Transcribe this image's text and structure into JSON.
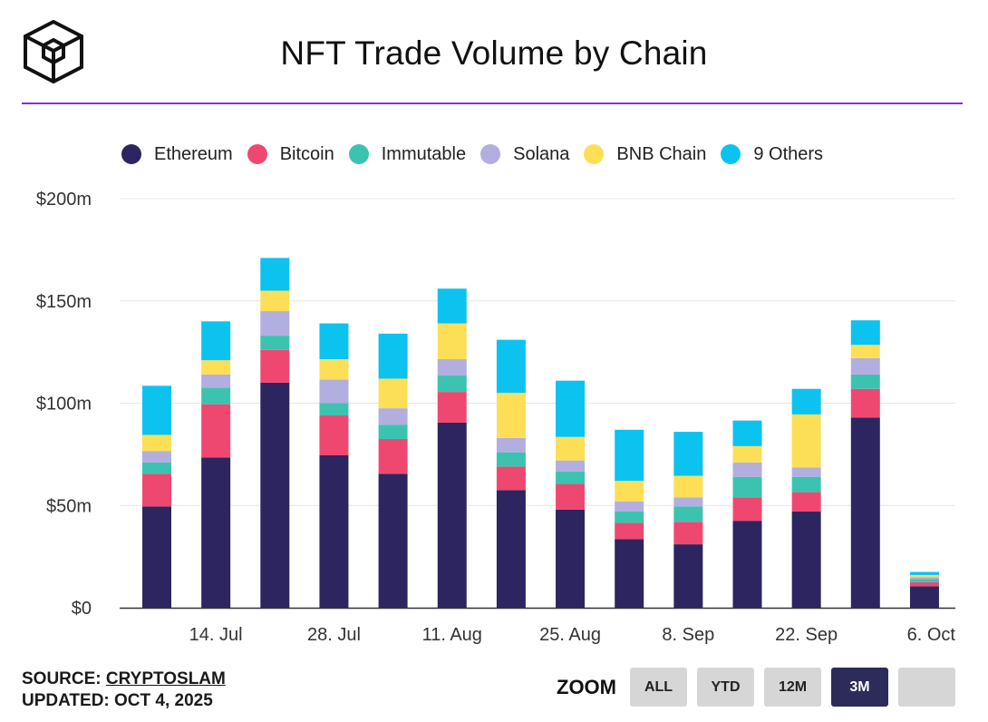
{
  "header": {
    "title": "NFT Trade Volume by Chain"
  },
  "legend": [
    {
      "name": "Ethereum",
      "color": "#2d2560"
    },
    {
      "name": "Bitcoin",
      "color": "#ef4870"
    },
    {
      "name": "Immutable",
      "color": "#3cc3b0"
    },
    {
      "name": "Solana",
      "color": "#b3aee0"
    },
    {
      "name": "BNB Chain",
      "color": "#fcdf57"
    },
    {
      "name": "9 Others",
      "color": "#0cc2ef"
    }
  ],
  "footer": {
    "source_label": "SOURCE: ",
    "source_name": "CRYPTOSLAM",
    "updated": "UPDATED: OCT 4, 2025"
  },
  "zoom": {
    "label": "ZOOM",
    "options": [
      "ALL",
      "YTD",
      "12M",
      "3M",
      ""
    ],
    "selected": "3M"
  },
  "chart_data": {
    "type": "bar",
    "stacked": true,
    "title": "NFT Trade Volume by Chain",
    "xlabel": "",
    "ylabel": "",
    "ylim": [
      0,
      200
    ],
    "y_ticks": [
      0,
      50,
      100,
      150,
      200
    ],
    "y_tick_labels": [
      "$0",
      "$50m",
      "$100m",
      "$150m",
      "$200m"
    ],
    "x_tick_labels": [
      "14. Jul",
      "28. Jul",
      "11. Aug",
      "25. Aug",
      "8. Sep",
      "22. Sep",
      "6. Oct"
    ],
    "x_tick_bar_index": [
      1,
      3,
      5,
      7,
      9,
      11,
      13
    ],
    "grid": true,
    "legend_position": "top",
    "categories": [
      "bar-1",
      "bar-2",
      "bar-3",
      "bar-4",
      "bar-5",
      "bar-6",
      "bar-7",
      "bar-8",
      "bar-9",
      "bar-10",
      "bar-11",
      "bar-12",
      "bar-13",
      "bar-14"
    ],
    "series": [
      {
        "name": "Ethereum",
        "color": "#2d2560",
        "values": [
          49.5,
          73.5,
          110,
          74.5,
          65.5,
          90.5,
          57.5,
          48,
          33.5,
          31,
          42.5,
          47,
          93,
          10.5
        ]
      },
      {
        "name": "Bitcoin",
        "color": "#ef4870",
        "values": [
          16,
          26,
          16,
          19.5,
          17,
          15,
          11.5,
          12.5,
          8,
          11,
          11.5,
          9.5,
          14,
          2
        ]
      },
      {
        "name": "Immutable",
        "color": "#3cc3b0",
        "values": [
          5.5,
          8,
          7,
          6,
          7,
          8,
          7,
          6,
          5.5,
          7.5,
          10,
          7.5,
          7,
          1.5
        ]
      },
      {
        "name": "Solana",
        "color": "#b3aee0",
        "values": [
          5.5,
          6.5,
          12,
          11.5,
          8,
          8,
          7,
          5.5,
          5,
          4.5,
          7,
          4.5,
          8,
          1
        ]
      },
      {
        "name": "BNB Chain",
        "color": "#fcdf57",
        "values": [
          8,
          7,
          10,
          10,
          14.5,
          17.5,
          22,
          11.5,
          10,
          10.5,
          8,
          26,
          6.5,
          1
        ]
      },
      {
        "name": "9 Others",
        "color": "#0cc2ef",
        "values": [
          24,
          19,
          16,
          17.5,
          22,
          17,
          26,
          27.5,
          25,
          21.5,
          12.5,
          12.5,
          12,
          1.5
        ]
      }
    ]
  }
}
